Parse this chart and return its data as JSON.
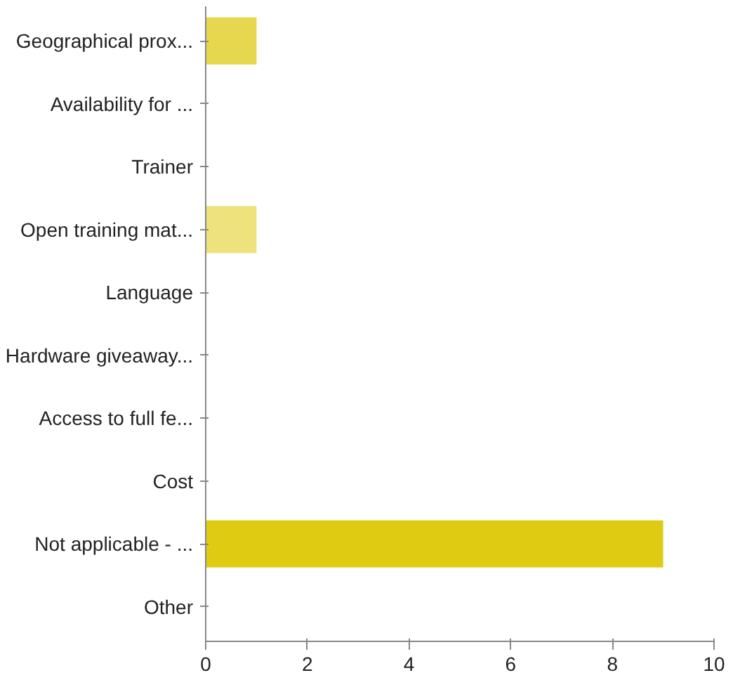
{
  "chart_data": {
    "type": "bar",
    "orientation": "horizontal",
    "categories": [
      "Geographical prox...",
      "Availability for ...",
      "Trainer",
      "Open training mat...",
      "Language",
      "Hardware giveaway...",
      "Access to full fe...",
      "Cost",
      "Not applicable - ...",
      "Other"
    ],
    "values": [
      1,
      0,
      0,
      1,
      0,
      0,
      0,
      0,
      9,
      0
    ],
    "colors": [
      "#e6d74e",
      "#e6d74e",
      "#e6d74e",
      "#ede27c",
      "#e6d74e",
      "#e6d74e",
      "#e6d74e",
      "#e6d74e",
      "#dfcc12",
      "#e6d74e"
    ],
    "xlim": [
      0,
      10
    ],
    "xticks": [
      0,
      2,
      4,
      6,
      8,
      10
    ],
    "grid": false
  }
}
